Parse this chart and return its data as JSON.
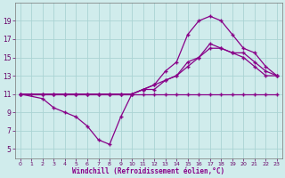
{
  "background_color": "#d0ecec",
  "grid_color": "#aad4d4",
  "line_color": "#880088",
  "marker": "+",
  "xlim": [
    -0.5,
    23.5
  ],
  "ylim": [
    4,
    21
  ],
  "xlabel": "Windchill (Refroidissement éolien,°C)",
  "xticks": [
    0,
    1,
    2,
    3,
    4,
    5,
    6,
    7,
    8,
    9,
    10,
    11,
    12,
    13,
    14,
    15,
    16,
    17,
    18,
    19,
    20,
    21,
    22,
    23
  ],
  "yticks": [
    5,
    7,
    9,
    11,
    13,
    15,
    17,
    19
  ],
  "line1_x": [
    0,
    1,
    2,
    3,
    4,
    5,
    6,
    7,
    8,
    9,
    10,
    11,
    12,
    13,
    14,
    15,
    16,
    17,
    18,
    19,
    20,
    21,
    22,
    23
  ],
  "line1_y": [
    11,
    11,
    11,
    11,
    11,
    11,
    11,
    11,
    11,
    11,
    11,
    11,
    11,
    11,
    11,
    11,
    11,
    11,
    11,
    11,
    11,
    11,
    11,
    11
  ],
  "line2_x": [
    0,
    2,
    3,
    4,
    5,
    6,
    7,
    8,
    9,
    10,
    11,
    12,
    13,
    14,
    15,
    16,
    17,
    18,
    19,
    20,
    21,
    22,
    23
  ],
  "line2_y": [
    11,
    10.5,
    9.5,
    9.0,
    8.5,
    7.5,
    6.0,
    5.5,
    8.5,
    11.0,
    11.5,
    12.0,
    13.5,
    14.5,
    17.5,
    19.0,
    19.5,
    19.0,
    17.5,
    16.0,
    15.5,
    14.0,
    13.0
  ],
  "line3_x": [
    0,
    2,
    3,
    4,
    5,
    6,
    7,
    8,
    9,
    10,
    11,
    12,
    13,
    14,
    15,
    16,
    17,
    18,
    19,
    20,
    21,
    22,
    23
  ],
  "line3_y": [
    11,
    11,
    11,
    11,
    11,
    11,
    11,
    11,
    11,
    11,
    11.5,
    12.0,
    12.5,
    13.0,
    14.0,
    15.0,
    16.0,
    16.0,
    15.5,
    15.5,
    14.5,
    13.5,
    13.0
  ],
  "line4_x": [
    0,
    2,
    3,
    4,
    5,
    6,
    7,
    8,
    9,
    10,
    11,
    12,
    13,
    14,
    15,
    16,
    17,
    18,
    19,
    20,
    21,
    22,
    23
  ],
  "line4_y": [
    11,
    11,
    11,
    11,
    11,
    11,
    11,
    11,
    11,
    11,
    11.5,
    11.5,
    12.5,
    13.0,
    14.5,
    15.0,
    16.5,
    16.0,
    15.5,
    15.0,
    14.0,
    13.0,
    13.0
  ]
}
